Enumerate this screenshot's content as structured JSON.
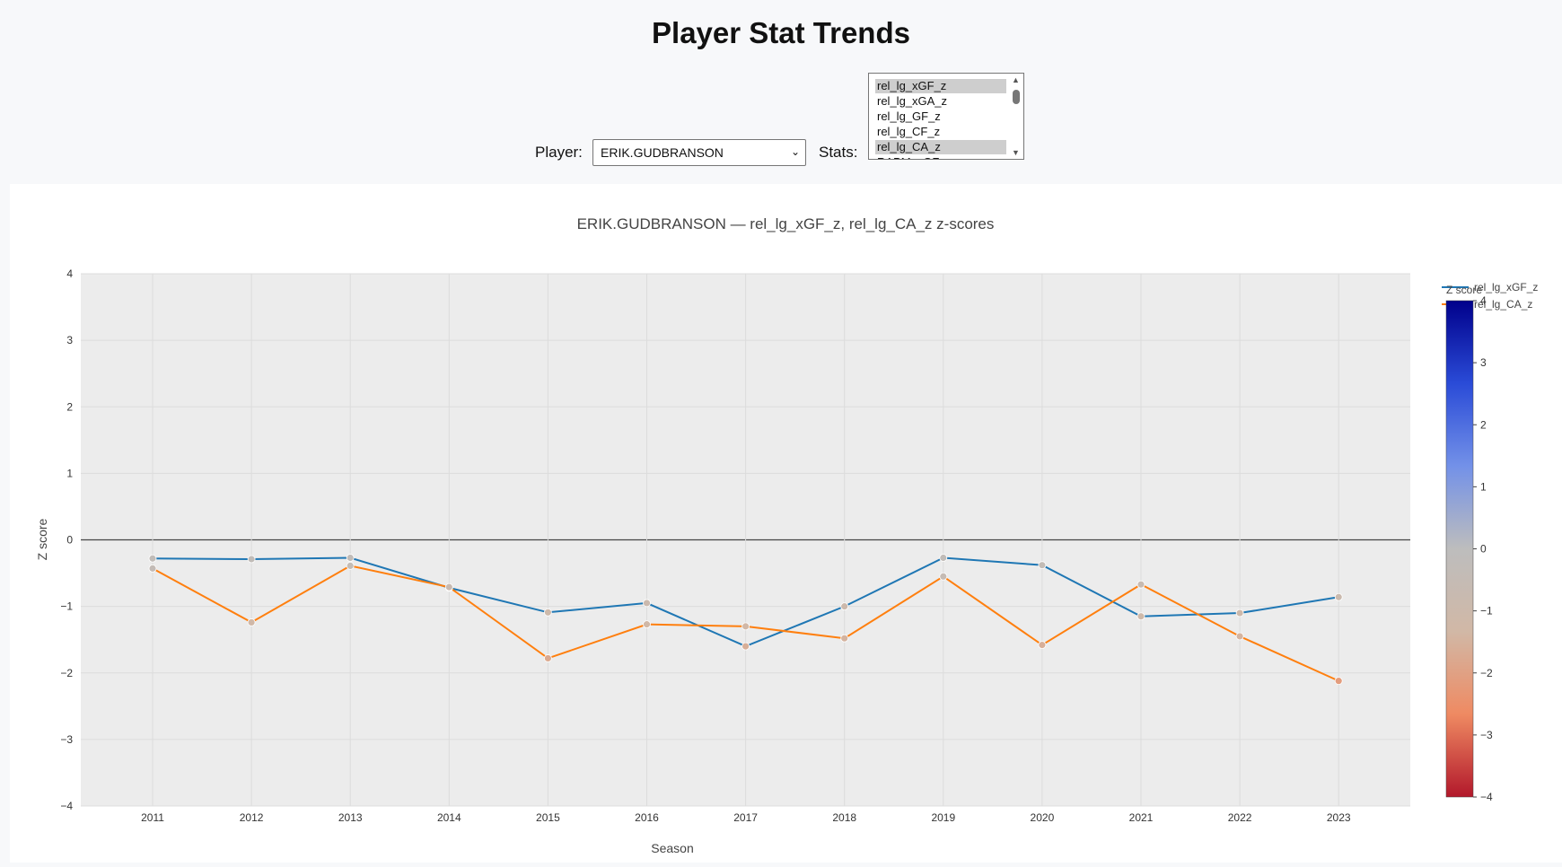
{
  "page": {
    "title": "Player Stat Trends"
  },
  "controls": {
    "player_label": "Player:",
    "player_value": "ERIK.GUDBRANSON",
    "stats_label": "Stats:",
    "stats_options": [
      {
        "label": "rel_lg_xGF_z",
        "selected": true
      },
      {
        "label": "rel_lg_xGA_z",
        "selected": false
      },
      {
        "label": "rel_lg_GF_z",
        "selected": false
      },
      {
        "label": "rel_lg_CF_z",
        "selected": false
      },
      {
        "label": "rel_lg_CA_z",
        "selected": true
      },
      {
        "label": "RAPM_xGF",
        "selected": false
      }
    ]
  },
  "chart_data": {
    "type": "line",
    "title": "ERIK.GUDBRANSON — rel_lg_xGF_z, rel_lg_CA_z z-scores",
    "xlabel": "Season",
    "ylabel": "Z score",
    "x": [
      2011,
      2012,
      2013,
      2014,
      2015,
      2016,
      2017,
      2018,
      2019,
      2020,
      2021,
      2022,
      2023
    ],
    "ylim": [
      -4,
      4
    ],
    "yticks": [
      4,
      3,
      2,
      1,
      0,
      -1,
      -2,
      -3,
      -4
    ],
    "ytick_labels": [
      "4",
      "3",
      "2",
      "1",
      "0",
      "−1",
      "−2",
      "−3",
      "−4"
    ],
    "grid": true,
    "legend_position": "top-right",
    "series": [
      {
        "name": "rel_lg_xGF_z",
        "color": "#1f77b4",
        "values": [
          -0.28,
          -0.29,
          -0.27,
          -0.72,
          -1.09,
          -0.95,
          -1.6,
          -1.0,
          -0.27,
          -0.38,
          -1.15,
          -1.1,
          -0.86
        ]
      },
      {
        "name": "rel_lg_CA_z",
        "color": "#ff7f0e",
        "values": [
          -0.43,
          -1.24,
          -0.39,
          -0.71,
          -1.78,
          -1.27,
          -1.3,
          -1.48,
          -0.55,
          -1.58,
          -0.67,
          -1.45,
          -2.12
        ]
      }
    ],
    "colorbar": {
      "title": "Z score",
      "range": [
        -4,
        4
      ],
      "ticks": [
        4,
        3,
        2,
        1,
        0,
        -1,
        -2,
        -3,
        -4
      ],
      "tick_labels": [
        "4",
        "3",
        "2",
        "1",
        "0",
        "−1",
        "−2",
        "−3",
        "−4"
      ],
      "colorscale": [
        "#b2182b",
        "#ef8a62",
        "#d1b8a6",
        "#bdbdbd",
        "#7391e8",
        "#2a4bd7",
        "#00008b"
      ]
    }
  }
}
